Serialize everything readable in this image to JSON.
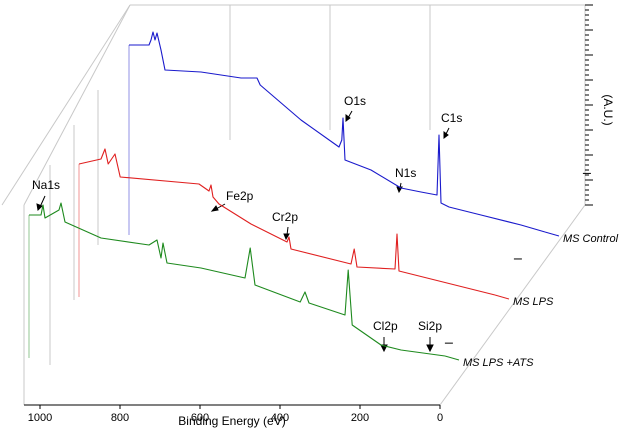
{
  "chart_data": {
    "type": "waterfall",
    "xlabel": "Binding Energy (eV)",
    "ylabel": "(A.U.)",
    "xlim": [
      1040,
      0
    ],
    "xticks": [
      1000,
      800,
      600,
      400,
      200,
      0
    ],
    "ylim": [
      0,
      200
    ],
    "series": [
      {
        "name": "MS Control",
        "color": "#1a1acc",
        "x": [
          1040,
          990,
          985,
          980,
          975,
          970,
          960,
          950,
          860,
          760,
          720,
          712,
          610,
          515,
          508,
          505,
          500,
          435,
          360,
          310,
          270,
          265,
          260,
          240,
          160,
          60,
          0
        ],
        "values": [
          190,
          190,
          195,
          203,
          195,
          202,
          185,
          165,
          163,
          157,
          157,
          150,
          115,
          88,
          95,
          117,
          75,
          65,
          47,
          43,
          40,
          100,
          32,
          28,
          20,
          10,
          3
        ]
      },
      {
        "name": "MS LPS",
        "color": "#e02020",
        "x": [
          1040,
          985,
          975,
          967,
          950,
          937,
          740,
          715,
          710,
          705,
          690,
          610,
          535,
          520,
          515,
          510,
          360,
          352,
          345,
          250,
          245,
          240,
          110,
          0
        ],
        "values": [
          133,
          138,
          148,
          133,
          143,
          120,
          113,
          106,
          112,
          100,
          93,
          73,
          58,
          55,
          60,
          48,
          33,
          48,
          30,
          28,
          63,
          26,
          13,
          2
        ]
      },
      {
        "name": "MS LPS +ATS",
        "color": "#1e8a1e",
        "x": [
          1040,
          1010,
          1005,
          1000,
          965,
          960,
          950,
          860,
          740,
          720,
          710,
          705,
          695,
          610,
          500,
          487,
          475,
          362,
          350,
          340,
          250,
          242,
          232,
          160,
          110,
          0
        ],
        "values": [
          143,
          143,
          153,
          140,
          148,
          155,
          136,
          120,
          113,
          118,
          100,
          115,
          95,
          90,
          80,
          110,
          73,
          56,
          66,
          55,
          43,
          88,
          33,
          13,
          8,
          2
        ]
      }
    ],
    "annotations": [
      "Na1s",
      "O1s",
      "C1s",
      "N1s",
      "Fe2p",
      "Cr2p",
      "Cl2p",
      "Si2p"
    ]
  }
}
